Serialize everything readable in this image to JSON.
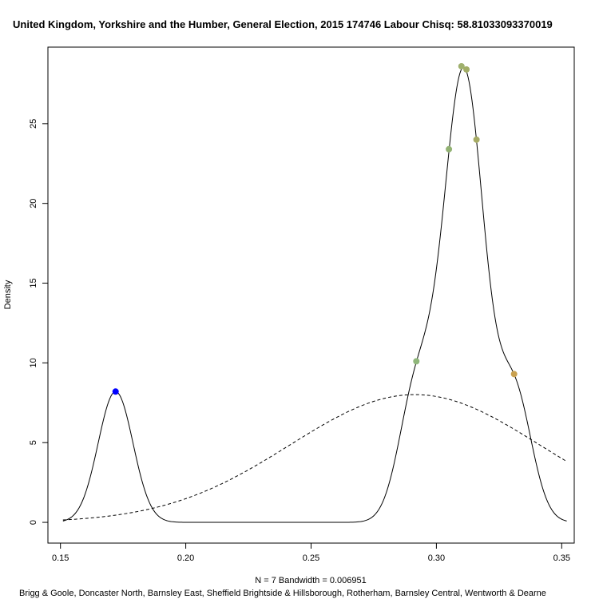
{
  "chart_data": {
    "type": "line",
    "title": "United Kingdom, Yorkshire and the Humber, General Election, 2015 174746 Labour Chisq: 58.81033093370019",
    "xlabel": "N = 7   Bandwidth = 0.006951",
    "ylabel": "Density",
    "footer": "Brigg & Goole, Doncaster North, Barnsley East, Sheffield Brightside & Hillsborough, Rotherham, Barnsley Central, Wentworth & Dearne",
    "xlim": [
      0.145,
      0.355
    ],
    "ylim": [
      -1.3,
      29.8
    ],
    "x_ticks": [
      {
        "value": 0.15,
        "label": "0.15"
      },
      {
        "value": 0.2,
        "label": "0.20"
      },
      {
        "value": 0.25,
        "label": "0.25"
      },
      {
        "value": 0.3,
        "label": "0.30"
      },
      {
        "value": 0.35,
        "label": "0.35"
      }
    ],
    "y_ticks": [
      {
        "value": 0,
        "label": "0"
      },
      {
        "value": 5,
        "label": "5"
      },
      {
        "value": 10,
        "label": "10"
      },
      {
        "value": 15,
        "label": "15"
      },
      {
        "value": 20,
        "label": "20"
      },
      {
        "value": 25,
        "label": "25"
      }
    ],
    "kde": {
      "bandwidth": 0.006951,
      "observations": [
        0.172,
        0.292,
        0.305,
        0.31,
        0.312,
        0.316,
        0.331
      ],
      "x_range": [
        0.151,
        0.352
      ]
    },
    "normal_reference": {
      "mean": 0.2914,
      "sd": 0.0498,
      "x_range": [
        0.151,
        0.352
      ]
    },
    "points": [
      {
        "x": 0.172,
        "y": 8.2,
        "color": "#0000ff"
      },
      {
        "x": 0.292,
        "y": 10.1,
        "color": "#8fb67a"
      },
      {
        "x": 0.305,
        "y": 23.4,
        "color": "#92b273"
      },
      {
        "x": 0.31,
        "y": 28.6,
        "color": "#9fb06d"
      },
      {
        "x": 0.312,
        "y": 28.4,
        "color": "#a2ad66"
      },
      {
        "x": 0.316,
        "y": 24.0,
        "color": "#a6ab64"
      },
      {
        "x": 0.331,
        "y": 9.3,
        "color": "#c9a150"
      }
    ]
  }
}
